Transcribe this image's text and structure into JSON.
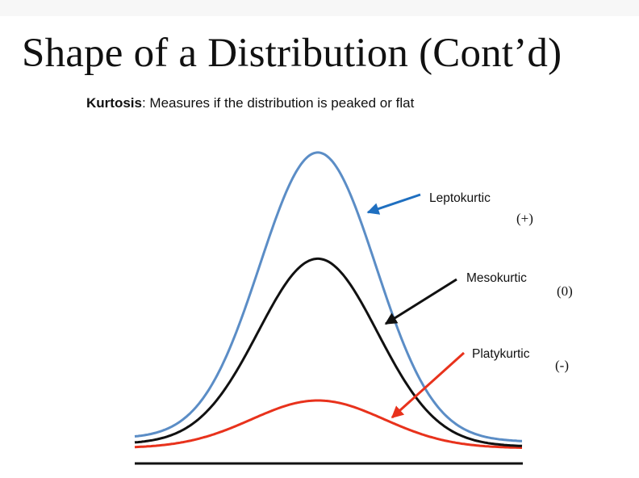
{
  "slide": {
    "title": "Shape of a Distribution (Cont’d)",
    "subtitle_term": "Kurtosis",
    "subtitle_text": ": Measures if the distribution is peaked or flat"
  },
  "curves": [
    {
      "label": "Leptokurtic",
      "sign": "(+)",
      "color": "#5b8dc6",
      "arrow_color": "#1f6fc0"
    },
    {
      "label": "Mesokurtic",
      "sign": "(0)",
      "color": "#111111",
      "arrow_color": "#111111"
    },
    {
      "label": "Platykurtic",
      "sign": "(-)",
      "color": "#e8321c",
      "arrow_color": "#e8321c"
    }
  ]
}
